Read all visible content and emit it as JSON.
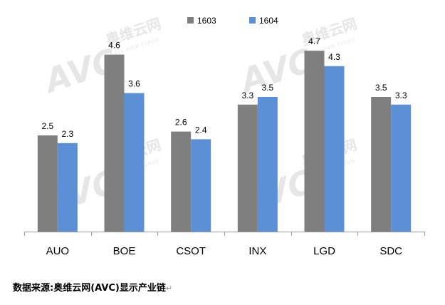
{
  "colors": {
    "series_1603": "#7f7f7f",
    "series_1604": "#5b8fd6",
    "axis": "#999999"
  },
  "watermark": {
    "brand": "AVC",
    "chinese": "奥维云网",
    "sub": "ALL VIEW CLOUD"
  },
  "source_note": "数据来源:奥维云网(AVC)显示产业链",
  "return_mark": "↵",
  "chart_data": {
    "type": "bar",
    "title": "",
    "xlabel": "",
    "ylabel": "",
    "categories": [
      "AUO",
      "BOE",
      "CSOT",
      "INX",
      "LGD",
      "SDC"
    ],
    "series": [
      {
        "name": "1603",
        "values": [
          2.5,
          4.6,
          2.6,
          3.3,
          4.7,
          3.5
        ]
      },
      {
        "name": "1604",
        "values": [
          2.3,
          3.6,
          2.4,
          3.5,
          4.3,
          3.3
        ]
      }
    ],
    "ylim": [
      0,
      5.0
    ],
    "legend": "top-center",
    "grid": false,
    "y_axis_visible": false
  }
}
